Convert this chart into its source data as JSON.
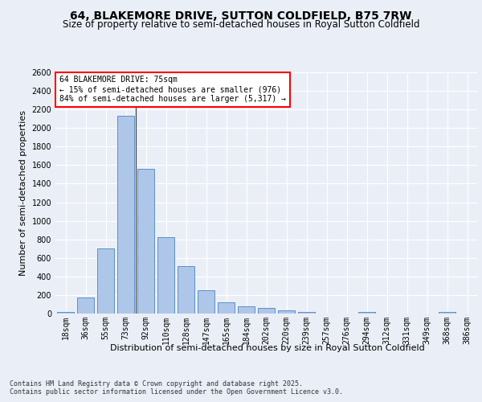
{
  "title": "64, BLAKEMORE DRIVE, SUTTON COLDFIELD, B75 7RW",
  "subtitle": "Size of property relative to semi-detached houses in Royal Sutton Coldfield",
  "xlabel": "Distribution of semi-detached houses by size in Royal Sutton Coldfield",
  "ylabel": "Number of semi-detached properties",
  "categories": [
    "18sqm",
    "36sqm",
    "55sqm",
    "73sqm",
    "92sqm",
    "110sqm",
    "128sqm",
    "147sqm",
    "165sqm",
    "184sqm",
    "202sqm",
    "220sqm",
    "239sqm",
    "257sqm",
    "276sqm",
    "294sqm",
    "312sqm",
    "331sqm",
    "349sqm",
    "368sqm",
    "386sqm"
  ],
  "values": [
    20,
    175,
    700,
    2130,
    1560,
    820,
    510,
    250,
    125,
    80,
    60,
    35,
    20,
    0,
    0,
    20,
    0,
    0,
    0,
    15,
    0
  ],
  "bar_color": "#aec6e8",
  "bar_edge_color": "#5b8fc9",
  "property_sqm": 75,
  "pct_smaller": 15,
  "count_smaller": 976,
  "pct_larger": 84,
  "count_larger": 5317,
  "annotation_label": "64 BLAKEMORE DRIVE: 75sqm",
  "annotation_smaller": "← 15% of semi-detached houses are smaller (976)",
  "annotation_larger": "84% of semi-detached houses are larger (5,317) →",
  "vline_bar_index": 3,
  "ylim": [
    0,
    2600
  ],
  "yticks": [
    0,
    200,
    400,
    600,
    800,
    1000,
    1200,
    1400,
    1600,
    1800,
    2000,
    2200,
    2400,
    2600
  ],
  "bg_color": "#eaeff7",
  "plot_bg_color": "#eaeff7",
  "footer_line1": "Contains HM Land Registry data © Crown copyright and database right 2025.",
  "footer_line2": "Contains public sector information licensed under the Open Government Licence v3.0.",
  "title_fontsize": 10,
  "subtitle_fontsize": 8.5,
  "axis_label_fontsize": 8,
  "tick_fontsize": 7,
  "annotation_fontsize": 7,
  "footer_fontsize": 6
}
